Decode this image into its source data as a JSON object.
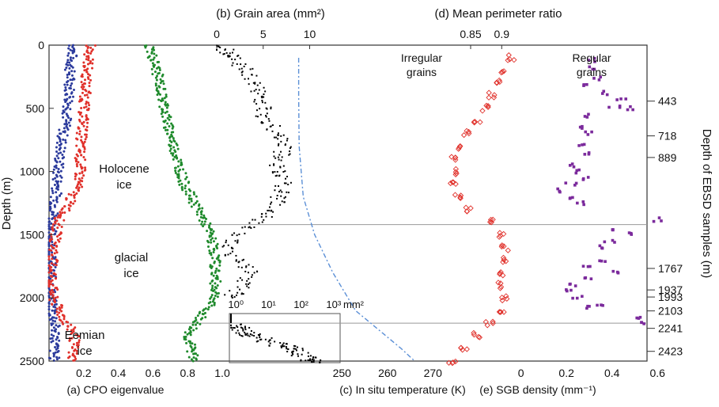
{
  "colors": {
    "eigen_a1": "#2b3a9c",
    "eigen_a2": "#e0302a",
    "eigen_a3": "#1f8a2c",
    "grain": "#000000",
    "temperature": "#5b8fd6",
    "perimeter": "#e0302a",
    "sgb": "#7b2a9c",
    "divider": "#999999"
  },
  "labels": {
    "top_grain": "(b) Grain area (mm²)",
    "top_perimeter": "(d) Mean perimeter ratio",
    "bottom_cpo": "(a) CPO eigenvalue",
    "bottom_temp": "(c) In situ temperature (K)",
    "bottom_sgb": "(e) SGB density (mm⁻¹)",
    "y_left": "Depth (m)",
    "y_right": "Depth of EBSD samples (m)",
    "holocene": "Holocene",
    "holocene2": "ice",
    "glacial": "glacial",
    "glacial2": "ice",
    "eemian": "Eemian",
    "eemian2": "ice",
    "irregular": "Irregular",
    "irregular2": "grains",
    "regular": "Regular",
    "regular2": "grains",
    "inset_unit": "mm²"
  },
  "chart_data": [
    {
      "panel": "a",
      "type": "scatter",
      "xlabel": "(a) CPO eigenvalue",
      "ylabel": "Depth (m)",
      "xlim": [
        0,
        1.0
      ],
      "ylim": [
        2500,
        0
      ],
      "x_ticks": [
        "0.2",
        "0.4",
        "0.6",
        "0.8",
        "1.0"
      ],
      "y_ticks": [
        "0",
        "500",
        "1000",
        "1500",
        "2000",
        "2500"
      ],
      "series": [
        {
          "key": "a1",
          "points": [
            [
              0,
              0.14
            ],
            [
              100,
              0.13
            ],
            [
              200,
              0.12
            ],
            [
              300,
              0.12
            ],
            [
              400,
              0.12
            ],
            [
              500,
              0.11
            ],
            [
              600,
              0.1
            ],
            [
              700,
              0.08
            ],
            [
              800,
              0.07
            ],
            [
              900,
              0.06
            ],
            [
              1000,
              0.05
            ],
            [
              1100,
              0.05
            ],
            [
              1200,
              0.04
            ],
            [
              1300,
              0.03
            ],
            [
              1400,
              0.02
            ],
            [
              1500,
              0.01
            ],
            [
              1600,
              0.01
            ],
            [
              1700,
              0.01
            ],
            [
              1800,
              0.01
            ],
            [
              1900,
              0.01
            ],
            [
              2000,
              0.01
            ],
            [
              2100,
              0.02
            ],
            [
              2200,
              0.03
            ],
            [
              2300,
              0.04
            ],
            [
              2400,
              0.03
            ],
            [
              2500,
              0.03
            ]
          ]
        },
        {
          "key": "a2",
          "points": [
            [
              0,
              0.24
            ],
            [
              100,
              0.23
            ],
            [
              200,
              0.22
            ],
            [
              300,
              0.21
            ],
            [
              400,
              0.21
            ],
            [
              500,
              0.2
            ],
            [
              600,
              0.2
            ],
            [
              700,
              0.19
            ],
            [
              800,
              0.18
            ],
            [
              900,
              0.18
            ],
            [
              1000,
              0.18
            ],
            [
              1100,
              0.17
            ],
            [
              1200,
              0.13
            ],
            [
              1300,
              0.1
            ],
            [
              1400,
              0.05
            ],
            [
              1500,
              0.04
            ],
            [
              1600,
              0.03
            ],
            [
              1700,
              0.02
            ],
            [
              1800,
              0.02
            ],
            [
              1900,
              0.02
            ],
            [
              2000,
              0.02
            ],
            [
              2100,
              0.06
            ],
            [
              2200,
              0.1
            ],
            [
              2300,
              0.15
            ],
            [
              2400,
              0.14
            ],
            [
              2500,
              0.13
            ]
          ]
        },
        {
          "key": "a3",
          "points": [
            [
              0,
              0.58
            ],
            [
              100,
              0.6
            ],
            [
              200,
              0.62
            ],
            [
              300,
              0.64
            ],
            [
              400,
              0.65
            ],
            [
              500,
              0.67
            ],
            [
              600,
              0.68
            ],
            [
              700,
              0.7
            ],
            [
              800,
              0.72
            ],
            [
              900,
              0.74
            ],
            [
              1000,
              0.76
            ],
            [
              1100,
              0.78
            ],
            [
              1200,
              0.82
            ],
            [
              1300,
              0.86
            ],
            [
              1400,
              0.9
            ],
            [
              1500,
              0.93
            ],
            [
              1600,
              0.95
            ],
            [
              1700,
              0.96
            ],
            [
              1800,
              0.96
            ],
            [
              1900,
              0.96
            ],
            [
              2000,
              0.96
            ],
            [
              2100,
              0.9
            ],
            [
              2200,
              0.85
            ],
            [
              2300,
              0.8
            ],
            [
              2400,
              0.82
            ],
            [
              2500,
              0.84
            ]
          ]
        }
      ]
    },
    {
      "panel": "b",
      "type": "scatter",
      "xlabel": "(b) Grain area (mm²)",
      "xlim": [
        0,
        12
      ],
      "x_ticks": [
        "0",
        "5",
        "10"
      ],
      "points": [
        [
          20,
          0.6
        ],
        [
          50,
          1.0
        ],
        [
          80,
          1.4
        ],
        [
          100,
          1.8
        ],
        [
          150,
          2.3
        ],
        [
          200,
          3.0
        ],
        [
          250,
          3.6
        ],
        [
          300,
          4.1
        ],
        [
          350,
          4.4
        ],
        [
          400,
          4.8
        ],
        [
          450,
          4.9
        ],
        [
          500,
          5.1
        ],
        [
          550,
          5.0
        ],
        [
          600,
          5.5
        ],
        [
          650,
          6.0
        ],
        [
          700,
          6.6
        ],
        [
          750,
          7.0
        ],
        [
          800,
          7.4
        ],
        [
          850,
          7.0
        ],
        [
          900,
          6.8
        ],
        [
          950,
          6.5
        ],
        [
          1000,
          6.8
        ],
        [
          1050,
          7.1
        ],
        [
          1100,
          7.2
        ],
        [
          1150,
          7.1
        ],
        [
          1200,
          6.7
        ],
        [
          1250,
          6.6
        ],
        [
          1300,
          6.0
        ],
        [
          1350,
          5.5
        ],
        [
          1400,
          4.2
        ],
        [
          1450,
          3.2
        ],
        [
          1500,
          2.5
        ],
        [
          1550,
          1.6
        ],
        [
          1600,
          1.2
        ],
        [
          1650,
          1.5
        ],
        [
          1700,
          2.5
        ],
        [
          1750,
          3.2
        ],
        [
          1800,
          3.7
        ],
        [
          1850,
          3.0
        ],
        [
          1900,
          2.8
        ],
        [
          1950,
          2.0
        ],
        [
          1980,
          1.6
        ]
      ],
      "inset": {
        "scale": "log",
        "x_ticks": [
          "10⁰",
          "10¹",
          "10²",
          "10³"
        ],
        "unit": "mm²",
        "points": [
          [
            2150,
            0.2
          ],
          [
            2180,
            0.4
          ],
          [
            2220,
            1.0
          ],
          [
            2250,
            1.5
          ],
          [
            2280,
            2.0
          ],
          [
            2300,
            3.0
          ],
          [
            2330,
            8.0
          ],
          [
            2360,
            20
          ],
          [
            2390,
            40
          ],
          [
            2420,
            60
          ],
          [
            2450,
            100
          ],
          [
            2480,
            150
          ],
          [
            2500,
            200
          ]
        ]
      }
    },
    {
      "panel": "c",
      "type": "line",
      "xlabel": "(c) In situ temperature (K)",
      "xlim": [
        243,
        275
      ],
      "x_ticks": [
        "250",
        "260",
        "270"
      ],
      "points": [
        [
          100,
          240.5
        ],
        [
          400,
          240.5
        ],
        [
          800,
          240.6
        ],
        [
          1200,
          241.5
        ],
        [
          1500,
          244.0
        ],
        [
          1800,
          248.0
        ],
        [
          2100,
          253.0
        ],
        [
          2400,
          263.0
        ],
        [
          2500,
          266.0
        ]
      ]
    },
    {
      "panel": "d",
      "type": "scatter",
      "xlabel": "(d) Mean perimeter ratio",
      "xlim": [
        0.78,
        0.99
      ],
      "x_ticks": [
        "0.85",
        "0.9"
      ],
      "annotation_left": "Irregular grains",
      "annotation_right": "Regular grains",
      "points": [
        [
          100,
          0.915
        ],
        [
          200,
          0.905
        ],
        [
          300,
          0.895
        ],
        [
          400,
          0.885
        ],
        [
          500,
          0.875
        ],
        [
          600,
          0.86
        ],
        [
          700,
          0.843
        ],
        [
          800,
          0.83
        ],
        [
          900,
          0.825
        ],
        [
          1000,
          0.822
        ],
        [
          1100,
          0.822
        ],
        [
          1200,
          0.83
        ],
        [
          1300,
          0.848
        ],
        [
          1400,
          0.88
        ],
        [
          1500,
          0.9
        ],
        [
          1600,
          0.905
        ],
        [
          1700,
          0.905
        ],
        [
          1800,
          0.902
        ],
        [
          1900,
          0.9
        ],
        [
          2000,
          0.905
        ],
        [
          2100,
          0.902
        ],
        [
          2200,
          0.88
        ],
        [
          2300,
          0.86
        ],
        [
          2400,
          0.84
        ],
        [
          2500,
          0.82
        ]
      ]
    },
    {
      "panel": "e",
      "type": "scatter",
      "xlabel": "(e) SGB density (mm⁻¹)",
      "xlim": [
        -0.03,
        0.7
      ],
      "x_ticks": [
        "0",
        "0.2",
        "0.4",
        "0.6"
      ],
      "points": [
        [
          120,
          0.31
        ],
        [
          180,
          0.32
        ],
        [
          260,
          0.33
        ],
        [
          320,
          0.28
        ],
        [
          380,
          0.38
        ],
        [
          430,
          0.44
        ],
        [
          480,
          0.41
        ],
        [
          500,
          0.47
        ],
        [
          560,
          0.3
        ],
        [
          650,
          0.27
        ],
        [
          700,
          0.3
        ],
        [
          780,
          0.26
        ],
        [
          850,
          0.28
        ],
        [
          950,
          0.23
        ],
        [
          1000,
          0.26
        ],
        [
          1050,
          0.29
        ],
        [
          1100,
          0.22
        ],
        [
          1150,
          0.17
        ],
        [
          1200,
          0.22
        ],
        [
          1250,
          0.27
        ],
        [
          1380,
          0.6
        ],
        [
          1450,
          0.4
        ],
        [
          1500,
          0.5
        ],
        [
          1550,
          0.39
        ],
        [
          1600,
          0.35
        ],
        [
          1700,
          0.36
        ],
        [
          1750,
          0.29
        ],
        [
          1800,
          0.42
        ],
        [
          1850,
          0.3
        ],
        [
          1900,
          0.23
        ],
        [
          1950,
          0.2
        ],
        [
          2000,
          0.25
        ],
        [
          2050,
          0.35
        ],
        [
          2080,
          0.3
        ],
        [
          2150,
          0.5
        ],
        [
          2200,
          0.55
        ]
      ]
    }
  ],
  "ebsd_depths": [
    "443",
    "718",
    "889",
    "1767",
    "1937",
    "1993",
    "2103",
    "2241",
    "2423"
  ],
  "ebsd_values": [
    443,
    718,
    889,
    1767,
    1937,
    1993,
    2103,
    2241,
    2423
  ],
  "boundaries": [
    1420,
    2200
  ]
}
